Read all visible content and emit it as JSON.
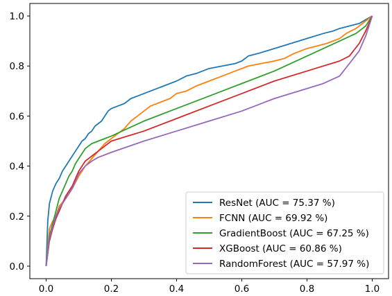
{
  "chart_data": {
    "type": "line",
    "title": "",
    "xlabel": "",
    "ylabel": "",
    "xlim": [
      -0.05,
      1.05
    ],
    "ylim": [
      -0.05,
      1.05
    ],
    "x_ticks": [
      0.0,
      0.2,
      0.4,
      0.6,
      0.8,
      1.0
    ],
    "y_ticks": [
      0.0,
      0.2,
      0.4,
      0.6,
      0.8,
      1.0
    ],
    "x_tick_labels": [
      "0.0",
      "0.2",
      "0.4",
      "0.6",
      "0.8",
      "1.0"
    ],
    "y_tick_labels": [
      "0.0",
      "0.2",
      "0.4",
      "0.6",
      "0.8",
      "1.0"
    ],
    "grid": false,
    "legend_position": "bottom-right",
    "series": [
      {
        "name": "ResNet (AUC = 75.37 %)",
        "color": "#1f77b4",
        "x": [
          0,
          0.005,
          0.01,
          0.02,
          0.03,
          0.04,
          0.05,
          0.06,
          0.07,
          0.08,
          0.09,
          0.1,
          0.11,
          0.12,
          0.13,
          0.14,
          0.15,
          0.16,
          0.17,
          0.18,
          0.19,
          0.2,
          0.22,
          0.24,
          0.26,
          0.28,
          0.3,
          0.32,
          0.34,
          0.36,
          0.38,
          0.4,
          0.43,
          0.46,
          0.5,
          0.54,
          0.58,
          0.6,
          0.62,
          0.65,
          0.7,
          0.75,
          0.8,
          0.85,
          0.88,
          0.9,
          0.93,
          0.96,
          0.98,
          1.0
        ],
        "y": [
          0,
          0.18,
          0.25,
          0.3,
          0.33,
          0.35,
          0.38,
          0.4,
          0.42,
          0.44,
          0.46,
          0.48,
          0.5,
          0.51,
          0.53,
          0.54,
          0.56,
          0.57,
          0.58,
          0.6,
          0.62,
          0.63,
          0.64,
          0.65,
          0.67,
          0.68,
          0.69,
          0.7,
          0.71,
          0.72,
          0.73,
          0.74,
          0.76,
          0.77,
          0.79,
          0.8,
          0.81,
          0.82,
          0.84,
          0.85,
          0.87,
          0.89,
          0.91,
          0.93,
          0.94,
          0.95,
          0.96,
          0.97,
          0.985,
          1.0
        ]
      },
      {
        "name": "FCNN (AUC = 69.92 %)",
        "color": "#ff7f0e",
        "x": [
          0,
          0.01,
          0.02,
          0.03,
          0.04,
          0.06,
          0.08,
          0.1,
          0.12,
          0.14,
          0.16,
          0.18,
          0.2,
          0.22,
          0.24,
          0.26,
          0.28,
          0.3,
          0.32,
          0.34,
          0.36,
          0.38,
          0.4,
          0.43,
          0.46,
          0.5,
          0.54,
          0.58,
          0.62,
          0.66,
          0.7,
          0.73,
          0.76,
          0.8,
          0.83,
          0.86,
          0.88,
          0.9,
          0.92,
          0.95,
          0.97,
          1.0
        ],
        "y": [
          0,
          0.15,
          0.18,
          0.2,
          0.24,
          0.27,
          0.31,
          0.36,
          0.4,
          0.43,
          0.46,
          0.49,
          0.51,
          0.53,
          0.55,
          0.58,
          0.6,
          0.62,
          0.64,
          0.65,
          0.66,
          0.67,
          0.69,
          0.7,
          0.72,
          0.74,
          0.76,
          0.78,
          0.8,
          0.81,
          0.82,
          0.83,
          0.85,
          0.87,
          0.88,
          0.89,
          0.9,
          0.91,
          0.93,
          0.95,
          0.97,
          1.0
        ]
      },
      {
        "name": "GradientBoost (AUC = 67.25 %)",
        "color": "#2ca02c",
        "x": [
          0,
          0.01,
          0.02,
          0.03,
          0.04,
          0.05,
          0.06,
          0.07,
          0.08,
          0.09,
          0.1,
          0.11,
          0.12,
          0.13,
          0.14,
          0.16,
          0.18,
          0.2,
          0.25,
          0.3,
          0.4,
          0.5,
          0.6,
          0.7,
          0.8,
          0.9,
          0.95,
          0.98,
          1.0
        ],
        "y": [
          0,
          0.12,
          0.17,
          0.22,
          0.27,
          0.3,
          0.33,
          0.36,
          0.38,
          0.41,
          0.43,
          0.45,
          0.47,
          0.48,
          0.49,
          0.5,
          0.51,
          0.52,
          0.55,
          0.58,
          0.63,
          0.68,
          0.73,
          0.78,
          0.84,
          0.9,
          0.93,
          0.96,
          1.0
        ]
      },
      {
        "name": "XGBoost (AUC = 60.86 %)",
        "color": "#d62728",
        "x": [
          0,
          0.01,
          0.02,
          0.03,
          0.04,
          0.05,
          0.06,
          0.08,
          0.1,
          0.12,
          0.14,
          0.16,
          0.18,
          0.2,
          0.25,
          0.3,
          0.4,
          0.5,
          0.6,
          0.7,
          0.8,
          0.9,
          0.93,
          0.96,
          0.98,
          1.0
        ],
        "y": [
          0,
          0.1,
          0.15,
          0.19,
          0.22,
          0.25,
          0.28,
          0.32,
          0.38,
          0.42,
          0.44,
          0.46,
          0.48,
          0.5,
          0.52,
          0.54,
          0.59,
          0.64,
          0.69,
          0.74,
          0.78,
          0.82,
          0.84,
          0.89,
          0.94,
          1.0
        ]
      },
      {
        "name": "RandomForest (AUC = 57.97 %)",
        "color": "#9467bd",
        "x": [
          0,
          0.01,
          0.02,
          0.03,
          0.04,
          0.05,
          0.06,
          0.08,
          0.1,
          0.12,
          0.14,
          0.16,
          0.18,
          0.2,
          0.3,
          0.4,
          0.5,
          0.6,
          0.7,
          0.8,
          0.85,
          0.9,
          0.93,
          0.96,
          0.98,
          1.0
        ],
        "y": [
          0,
          0.11,
          0.16,
          0.2,
          0.23,
          0.25,
          0.27,
          0.31,
          0.37,
          0.4,
          0.42,
          0.435,
          0.445,
          0.455,
          0.5,
          0.54,
          0.58,
          0.62,
          0.67,
          0.71,
          0.73,
          0.76,
          0.81,
          0.86,
          0.92,
          1.0
        ]
      }
    ]
  }
}
